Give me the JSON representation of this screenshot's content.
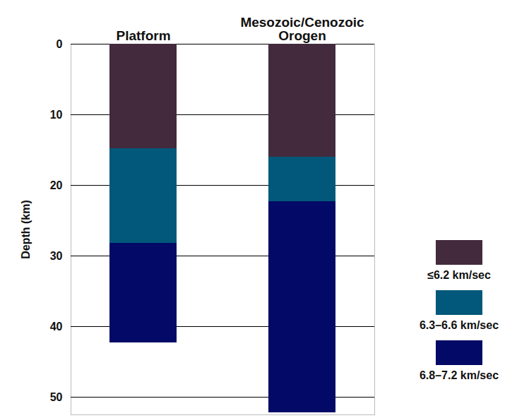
{
  "chart_data": {
    "type": "bar",
    "stacked": true,
    "ylabel": "Depth (km)",
    "categories": [
      "Platform",
      "Mesozoic/Cenozoic\nOrogen"
    ],
    "series": [
      {
        "name": "≤6.2 km/sec",
        "color": "#432a3d",
        "values": [
          14.8,
          16
        ]
      },
      {
        "name": "6.3–6.6 km/sec",
        "color": "#02587a",
        "values": [
          13.4,
          6.3
        ]
      },
      {
        "name": "6.8–7.2 km/sec",
        "color": "#020966",
        "values": [
          14.1,
          29.9
        ]
      }
    ],
    "ylim": [
      0,
      52.5
    ],
    "yticks": [
      0,
      10,
      20,
      30,
      40,
      50
    ],
    "grid": true,
    "legend": "right"
  }
}
